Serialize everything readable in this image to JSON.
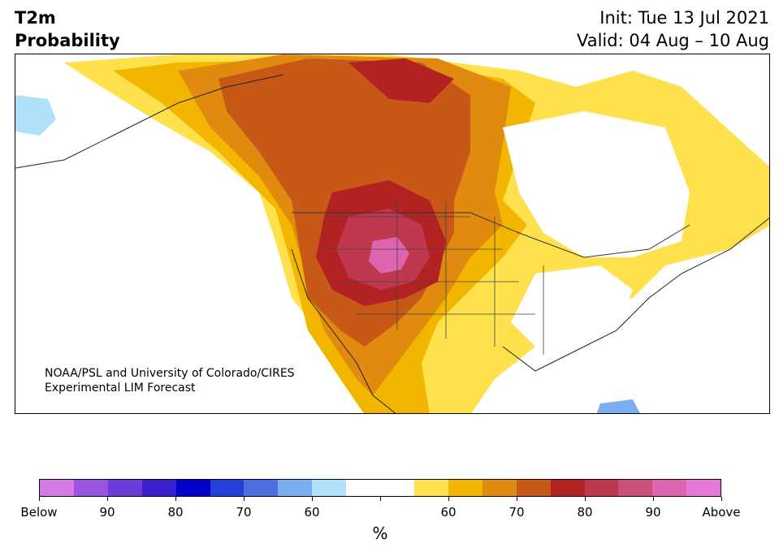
{
  "header": {
    "title_line1": "T2m",
    "title_line2": "Probability",
    "init_label": "Init: Tue 13 Jul 2021",
    "valid_label": "Valid: 04 Aug – 10 Aug"
  },
  "map": {
    "credit_line1": "NOAA/PSL and University of Colorado/CIRES",
    "credit_line2": "Experimental LIM Forecast"
  },
  "colorbar": {
    "colors": [
      "#d67ae6",
      "#9a55e0",
      "#6a3bd8",
      "#3a1fd0",
      "#0000cc",
      "#2240d8",
      "#4a70e0",
      "#7aaef0",
      "#b0e0fa",
      "#ffffff",
      "#ffffff",
      "#ffe14d",
      "#f2b600",
      "#e08a10",
      "#c85818",
      "#b22222",
      "#c03850",
      "#cc4f78",
      "#dd65b0",
      "#e878d8"
    ],
    "tick_labels": [
      "Below",
      "90",
      "80",
      "70",
      "60",
      "",
      "60",
      "70",
      "80",
      "90",
      "Above"
    ],
    "unit_label": "%"
  }
}
